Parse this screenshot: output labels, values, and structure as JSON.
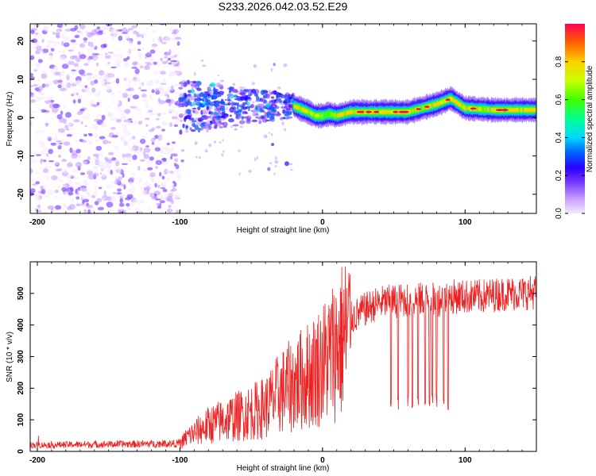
{
  "title": "S233.2026.042.03.52.E29",
  "chart_data": [
    {
      "type": "heatmap",
      "xlabel": "Height of straight line (km)",
      "ylabel": "Frequency (Hz)",
      "xlim": [
        -205,
        150
      ],
      "ylim": [
        -25,
        24.5
      ],
      "xticks": [
        -200,
        -100,
        0,
        100
      ],
      "yticks": [
        -20,
        -10,
        0,
        10,
        20
      ],
      "colorbar": {
        "label": "Normalized spectral amplitude",
        "ticks": [
          "0.0",
          "0.2",
          "0.4",
          "0.6",
          "0.8"
        ],
        "range": [
          0,
          1
        ],
        "colors": [
          "#f4e8ff",
          "#c79bff",
          "#7a3cff",
          "#2a00ff",
          "#0060ff",
          "#00d8ff",
          "#00ff90",
          "#40ff00",
          "#c8ff00",
          "#ffd000",
          "#ff6000",
          "#ff0050"
        ]
      },
      "features": {
        "noise_region_km": [
          -205,
          -100
        ],
        "transition_region_km": [
          -100,
          -20
        ],
        "carrier_region_km": [
          -20,
          150
        ],
        "carrier_frequency_hz": [
          [
            -20,
            3
          ],
          [
            -10,
            1.5
          ],
          [
            -5,
            0.5
          ],
          [
            0,
            0.5
          ],
          [
            5,
            1
          ],
          [
            10,
            0.5
          ],
          [
            20,
            1.5
          ],
          [
            40,
            1.5
          ],
          [
            60,
            1.5
          ],
          [
            80,
            3.5
          ],
          [
            90,
            5
          ],
          [
            100,
            2.5
          ],
          [
            120,
            2
          ],
          [
            150,
            2
          ]
        ]
      }
    },
    {
      "type": "line",
      "xlabel": "Height of straight line (km)",
      "ylabel": "SNR (10 * v/v)",
      "xlim": [
        -205,
        150
      ],
      "ylim": [
        0,
        600
      ],
      "xticks": [
        -200,
        -100,
        0,
        100
      ],
      "yticks": [
        0,
        100,
        200,
        300,
        400,
        500
      ],
      "color": "#ee2222",
      "envelope": {
        "x": [
          -205,
          -100,
          -95,
          -80,
          -60,
          -40,
          -30,
          -20,
          -10,
          0,
          10,
          20,
          30,
          40,
          50,
          60,
          70,
          80,
          90,
          100,
          110,
          120,
          130,
          140,
          150
        ],
        "y": [
          20,
          25,
          50,
          90,
          120,
          150,
          200,
          230,
          260,
          300,
          360,
          420,
          450,
          470,
          475,
          480,
          480,
          480,
          490,
          490,
          490,
          495,
          500,
          500,
          505
        ]
      },
      "dropouts_km": [
        48,
        53,
        60,
        63,
        67,
        72,
        75,
        77,
        80,
        85,
        88
      ]
    }
  ]
}
